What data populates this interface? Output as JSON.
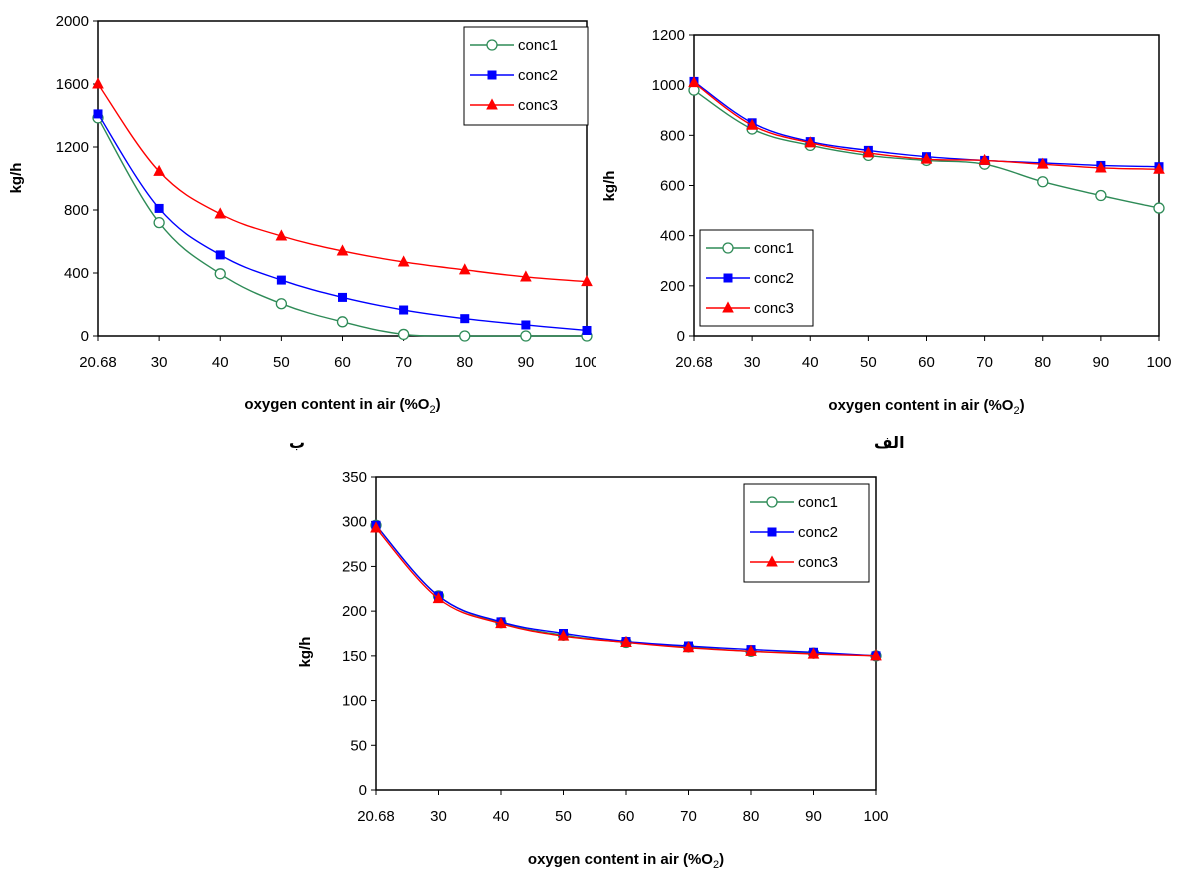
{
  "captions": {
    "left_panel": "ب",
    "right_panel": "الف"
  },
  "chart_data": [
    {
      "id": "b",
      "type": "line",
      "categories": [
        "20.68",
        "30",
        "40",
        "50",
        "60",
        "70",
        "80",
        "90",
        "100"
      ],
      "xlabel": "oxygen content in air (%O",
      "xlabel_sub": "2",
      "xlabel_close": ")",
      "ylabel": "kg/h",
      "ylim": [
        0,
        2000
      ],
      "yticks": [
        "0",
        "400",
        "800",
        "1200",
        "1600",
        "2000"
      ],
      "legend": "top-right",
      "series": [
        {
          "name": "conc1",
          "color": "#2e8b57",
          "marker": "circle-open",
          "values": [
            1385,
            720,
            395,
            205,
            90,
            10,
            0,
            0,
            0
          ]
        },
        {
          "name": "conc2",
          "color": "#0000ff",
          "marker": "square",
          "values": [
            1410,
            810,
            515,
            355,
            245,
            165,
            110,
            70,
            35
          ]
        },
        {
          "name": "conc3",
          "color": "#ff0000",
          "marker": "triangle",
          "values": [
            1600,
            1045,
            775,
            635,
            540,
            470,
            420,
            375,
            345
          ]
        }
      ]
    },
    {
      "id": "alef",
      "type": "line",
      "categories": [
        "20.68",
        "30",
        "40",
        "50",
        "60",
        "70",
        "80",
        "90",
        "100"
      ],
      "xlabel": "oxygen content in air (%O",
      "xlabel_sub": "2",
      "xlabel_close": ")",
      "ylabel": "kg/h",
      "ylim": [
        0,
        1200
      ],
      "yticks": [
        "0",
        "200",
        "400",
        "600",
        "800",
        "1000",
        "1200"
      ],
      "legend": "bottom-left",
      "series": [
        {
          "name": "conc1",
          "color": "#2e8b57",
          "marker": "circle-open",
          "values": [
            980,
            825,
            760,
            720,
            700,
            685,
            615,
            560,
            510
          ]
        },
        {
          "name": "conc2",
          "color": "#0000ff",
          "marker": "square",
          "values": [
            1015,
            850,
            775,
            740,
            715,
            700,
            690,
            680,
            675
          ]
        },
        {
          "name": "conc3",
          "color": "#ff0000",
          "marker": "triangle",
          "values": [
            1010,
            840,
            770,
            730,
            705,
            700,
            685,
            670,
            665
          ]
        }
      ]
    },
    {
      "id": "bottom",
      "type": "line",
      "categories": [
        "20.68",
        "30",
        "40",
        "50",
        "60",
        "70",
        "80",
        "90",
        "100"
      ],
      "xlabel": "oxygen content in air (%O",
      "xlabel_sub": "2",
      "xlabel_close": ")",
      "ylabel": "kg/h",
      "ylim": [
        0,
        350
      ],
      "yticks": [
        "0",
        "50",
        "100",
        "150",
        "200",
        "250",
        "300",
        "350"
      ],
      "legend": "top-right",
      "series": [
        {
          "name": "conc1",
          "color": "#2e8b57",
          "marker": "circle-open",
          "values": [
            296,
            217,
            187,
            173,
            165,
            160,
            155,
            153,
            150
          ]
        },
        {
          "name": "conc2",
          "color": "#0000ff",
          "marker": "square",
          "values": [
            296,
            217,
            188,
            175,
            166,
            161,
            157,
            154,
            150
          ]
        },
        {
          "name": "conc3",
          "color": "#ff0000",
          "marker": "triangle",
          "values": [
            293,
            214,
            186,
            172,
            165,
            159,
            155,
            152,
            150
          ]
        }
      ]
    }
  ]
}
